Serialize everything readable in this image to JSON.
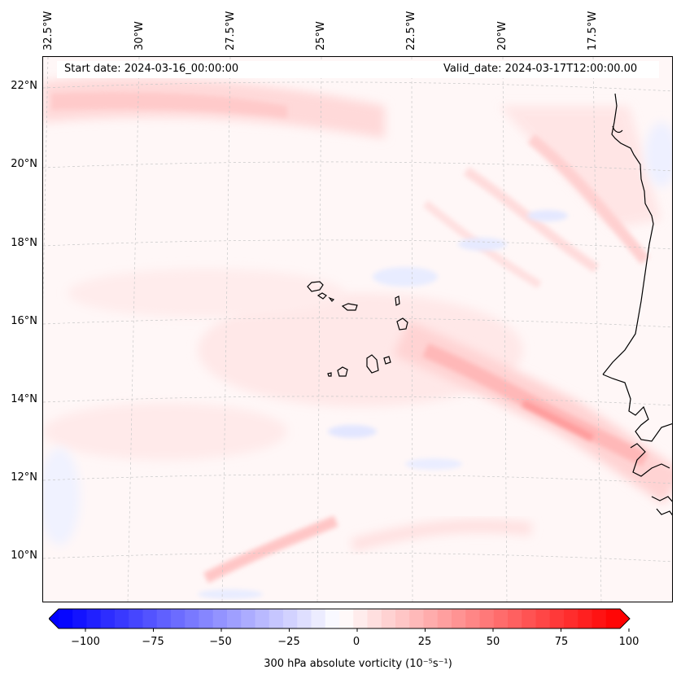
{
  "map": {
    "start_date": "Start date: 2024-03-16_00:00:00",
    "valid_date": "Valid_date: 2024-03-17T12:00:00.00",
    "lon_labels": [
      "32.5°W",
      "30°W",
      "27.5°W",
      "25°W",
      "22.5°W",
      "20°W",
      "17.5°W"
    ],
    "lat_labels": [
      "22°N",
      "20°N",
      "18°N",
      "16°N",
      "14°N",
      "12°N",
      "10°N"
    ],
    "extent": {
      "lon_min": -33.0,
      "lon_max": -16.0,
      "lat_min": 9.0,
      "lat_max": 22.7
    },
    "field": "300 hPa absolute vorticity",
    "colormap": "bwr",
    "coastline_color": "#000000",
    "gridline_color": "#c8c8c8"
  },
  "colorbar": {
    "label": "300 hPa absolute vorticity (10⁻⁵s⁻¹)",
    "ticks": [
      "−100",
      "−75",
      "−50",
      "−25",
      "0",
      "25",
      "50",
      "75",
      "100"
    ],
    "vmin": -100,
    "vmax": 100,
    "levels": 40,
    "min_color": "#0000ff",
    "mid_color": "#ffffff",
    "max_color": "#ff0000"
  }
}
